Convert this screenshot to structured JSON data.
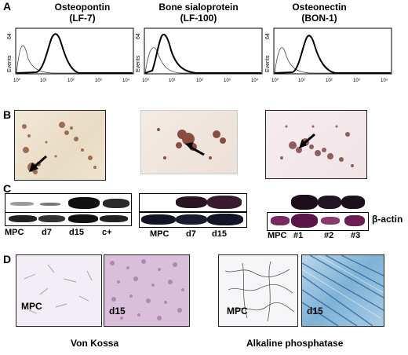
{
  "panel_labels": {
    "a": "A",
    "b": "B",
    "c": "C",
    "d": "D"
  },
  "panel_a": {
    "histograms": [
      {
        "name": "Osteopontin",
        "clone": "(LF-7)"
      },
      {
        "name": "Bone sialoprotein",
        "clone": "(LF-100)"
      },
      {
        "name": "Osteonectin",
        "clone": "(BON-1)"
      }
    ],
    "y_axis": {
      "label": "Events",
      "max": "64"
    },
    "x_ticks": [
      "10⁰",
      "10¹",
      "10²",
      "10³",
      "10⁴"
    ]
  },
  "panel_c": {
    "blot1_lanes": [
      "MPC",
      "d7",
      "d15",
      "c+"
    ],
    "blot2_lanes": [
      "MPC",
      "d7",
      "d15"
    ],
    "blot3_lanes": [
      "MPC",
      "#1",
      "#2",
      "#3"
    ],
    "loading_control": "β-actin"
  },
  "panel_d": {
    "von_kossa": {
      "left_label": "MPC",
      "right_label": "d15",
      "caption": "Von Kossa"
    },
    "alk_phos": {
      "left_label": "MPC",
      "right_label": "d15",
      "caption": "Alkaline phosphatase"
    }
  }
}
